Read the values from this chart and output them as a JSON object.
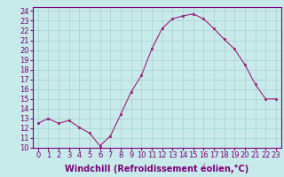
{
  "x": [
    0,
    1,
    2,
    3,
    4,
    5,
    6,
    7,
    8,
    9,
    10,
    11,
    12,
    13,
    14,
    15,
    16,
    17,
    18,
    19,
    20,
    21,
    22,
    23
  ],
  "y": [
    12.5,
    13.0,
    12.5,
    12.8,
    12.1,
    11.5,
    10.2,
    11.2,
    13.4,
    15.7,
    17.4,
    20.1,
    22.2,
    23.2,
    23.5,
    23.7,
    23.2,
    22.2,
    21.1,
    20.1,
    18.5,
    16.5,
    15.0,
    15.0
  ],
  "line_color": "#9b1f7a",
  "marker": "s",
  "marker_size": 2,
  "bg_color": "#c8eaea",
  "grid_color": "#a8d0d0",
  "xlabel": "Windchill (Refroidissement éolien,°C)",
  "xlabel_fontsize": 7,
  "tick_fontsize": 6,
  "ylim": [
    10,
    24.4
  ],
  "xlim": [
    -0.5,
    23.5
  ],
  "yticks": [
    10,
    11,
    12,
    13,
    14,
    15,
    16,
    17,
    18,
    19,
    20,
    21,
    22,
    23,
    24
  ],
  "xticks": [
    0,
    1,
    2,
    3,
    4,
    5,
    6,
    7,
    8,
    9,
    10,
    11,
    12,
    13,
    14,
    15,
    16,
    17,
    18,
    19,
    20,
    21,
    22,
    23
  ]
}
